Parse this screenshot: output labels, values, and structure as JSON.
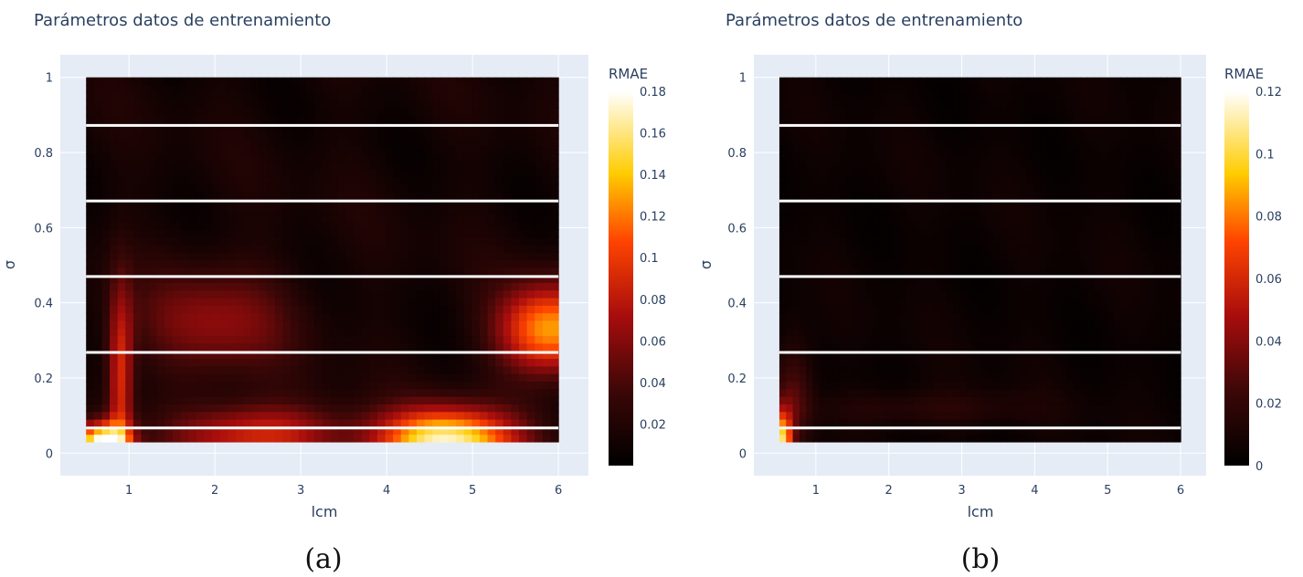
{
  "chart_data": [
    {
      "type": "heatmap",
      "title": "Parámetros datos de entrenamiento",
      "panel_label": "(a)",
      "xlabel": "lcm",
      "ylabel": "σ",
      "xlim": [
        0.2,
        6.35
      ],
      "ylim": [
        -0.06,
        1.06
      ],
      "x_range": [
        0.5,
        6.0
      ],
      "y_range": [
        0.03,
        1.0
      ],
      "x_ticks": [
        {
          "v": 1,
          "label": "1"
        },
        {
          "v": 2,
          "label": "2"
        },
        {
          "v": 3,
          "label": "3"
        },
        {
          "v": 4,
          "label": "4"
        },
        {
          "v": 5,
          "label": "5"
        },
        {
          "v": 6,
          "label": "6"
        }
      ],
      "y_ticks": [
        {
          "v": 0,
          "label": "0"
        },
        {
          "v": 0.2,
          "label": "0.2"
        },
        {
          "v": 0.4,
          "label": "0.4"
        },
        {
          "v": 0.6,
          "label": "0.6"
        },
        {
          "v": 0.8,
          "label": "0.8"
        },
        {
          "v": 1,
          "label": "1"
        }
      ],
      "gaps_sigma": [
        0.067,
        0.268,
        0.47,
        0.671,
        0.872
      ],
      "colorbar": {
        "title": "RMAE",
        "range": [
          0.0,
          0.18
        ],
        "ticks": [
          {
            "v": 0.02,
            "label": "0.02"
          },
          {
            "v": 0.04,
            "label": "0.04"
          },
          {
            "v": 0.06,
            "label": "0.06"
          },
          {
            "v": 0.08,
            "label": "0.08"
          },
          {
            "v": 0.1,
            "label": "0.1"
          },
          {
            "v": 0.12,
            "label": "0.12"
          },
          {
            "v": 0.14,
            "label": "0.14"
          },
          {
            "v": 0.16,
            "label": "0.16"
          },
          {
            "v": 0.18,
            "label": "0.18"
          }
        ]
      },
      "hotspots": [
        {
          "x": 4.7,
          "y": 0.03,
          "sx": 0.8,
          "sy": 0.09,
          "value": 0.16
        },
        {
          "x": 5.9,
          "y": 0.33,
          "sx": 0.6,
          "sy": 0.12,
          "value": 0.12
        },
        {
          "x": 0.7,
          "y": 0.03,
          "sx": 0.3,
          "sy": 0.05,
          "value": 0.17
        },
        {
          "x": 0.9,
          "y": 0.2,
          "sx": 0.15,
          "sy": 0.25,
          "value": 0.08
        },
        {
          "x": 2.5,
          "y": 0.05,
          "sx": 1.0,
          "sy": 0.08,
          "value": 0.08
        },
        {
          "x": 2.0,
          "y": 0.35,
          "sx": 0.9,
          "sy": 0.15,
          "value": 0.05
        }
      ],
      "base_value": 0.02
    },
    {
      "type": "heatmap",
      "title": "Parámetros datos de entrenamiento",
      "panel_label": "(b)",
      "xlabel": "lcm",
      "ylabel": "σ",
      "xlim": [
        0.15,
        6.35
      ],
      "ylim": [
        -0.06,
        1.06
      ],
      "x_range": [
        0.5,
        6.0
      ],
      "y_range": [
        0.03,
        1.0
      ],
      "x_ticks": [
        {
          "v": 1,
          "label": "1"
        },
        {
          "v": 2,
          "label": "2"
        },
        {
          "v": 3,
          "label": "3"
        },
        {
          "v": 4,
          "label": "4"
        },
        {
          "v": 5,
          "label": "5"
        },
        {
          "v": 6,
          "label": "6"
        }
      ],
      "y_ticks": [
        {
          "v": 0,
          "label": "0"
        },
        {
          "v": 0.2,
          "label": "0.2"
        },
        {
          "v": 0.4,
          "label": "0.4"
        },
        {
          "v": 0.6,
          "label": "0.6"
        },
        {
          "v": 0.8,
          "label": "0.8"
        },
        {
          "v": 1,
          "label": "1"
        }
      ],
      "gaps_sigma": [
        0.067,
        0.268,
        0.47,
        0.671,
        0.872
      ],
      "colorbar": {
        "title": "RMAE",
        "range": [
          0.0,
          0.12
        ],
        "ticks": [
          {
            "v": 0,
            "label": "0"
          },
          {
            "v": 0.02,
            "label": "0.02"
          },
          {
            "v": 0.04,
            "label": "0.04"
          },
          {
            "v": 0.06,
            "label": "0.06"
          },
          {
            "v": 0.08,
            "label": "0.08"
          },
          {
            "v": 0.1,
            "label": "0.1"
          },
          {
            "v": 0.12,
            "label": "0.12"
          }
        ]
      },
      "hotspots": [
        {
          "x": 0.55,
          "y": 0.03,
          "sx": 0.12,
          "sy": 0.08,
          "value": 0.09
        },
        {
          "x": 0.7,
          "y": 0.15,
          "sx": 0.25,
          "sy": 0.15,
          "value": 0.025
        },
        {
          "x": 2.5,
          "y": 0.12,
          "sx": 1.5,
          "sy": 0.05,
          "value": 0.012
        }
      ],
      "base_value": 0.008
    }
  ]
}
